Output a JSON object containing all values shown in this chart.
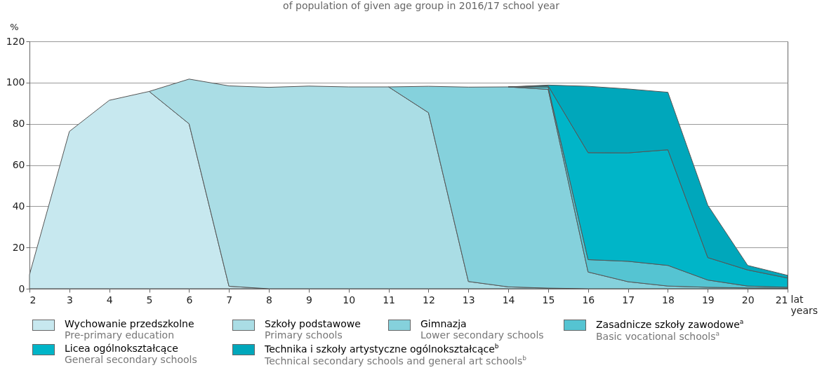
{
  "chart_data": {
    "type": "area",
    "stacked": true,
    "title": "of population of given age group in 2016/17 school year",
    "ylabel": "%",
    "xlabel": "lat\nyears",
    "x": [
      2,
      3,
      4,
      5,
      6,
      7,
      8,
      9,
      10,
      11,
      12,
      13,
      14,
      15,
      16,
      17,
      18,
      19,
      20,
      21
    ],
    "xlim": [
      2,
      21
    ],
    "xticks": [
      2,
      3,
      4,
      5,
      6,
      7,
      8,
      9,
      10,
      11,
      12,
      13,
      14,
      15,
      16,
      17,
      18,
      19,
      20,
      21
    ],
    "ylim": [
      0,
      120
    ],
    "yticks": [
      0,
      20,
      40,
      60,
      80,
      100,
      120
    ],
    "grid": "y",
    "legend": "bottom",
    "series": [
      {
        "name": "Wychowanie przedszkolne\nPre-primary education",
        "color": "#c7e8ef",
        "values": [
          6.8,
          76.3,
          91.4,
          95.7,
          80.0,
          1.2,
          0,
          null,
          null,
          null,
          null,
          null,
          null,
          null,
          null,
          null,
          null,
          null,
          null,
          null
        ]
      },
      {
        "name": "Szkoły podstawowe\nPrimary schools",
        "color": "#aadde5",
        "values": [
          null,
          null,
          null,
          0,
          21.7,
          97.2,
          97.7,
          98.3,
          97.9,
          97.9,
          85.4,
          3.5,
          0.9,
          0.3,
          0,
          null,
          null,
          null,
          null,
          null
        ]
      },
      {
        "name": "Gimnazja\nLower secondary schools",
        "color": "#85d1dc",
        "values": [
          null,
          null,
          null,
          null,
          null,
          null,
          null,
          null,
          null,
          0,
          12.8,
          94.3,
          97.0,
          96.4,
          8.1,
          3.4,
          1.3,
          0.7,
          0.4,
          0.3
        ]
      },
      {
        "name": "Zasadnicze szkoły zawodowe$^{a}$\nBasic vocational schools$^{a}$",
        "color": "#55c4d2",
        "values": [
          null,
          null,
          null,
          null,
          null,
          null,
          null,
          null,
          null,
          null,
          null,
          null,
          0,
          1.2,
          6.0,
          9.9,
          10.0,
          3.5,
          0.9,
          0.4
        ]
      },
      {
        "name": "Licea ogólnokształcące\nGeneral secondary schools",
        "color": "#00b5c8",
        "values": [
          null,
          null,
          null,
          null,
          null,
          null,
          null,
          null,
          null,
          null,
          null,
          null,
          0,
          0.5,
          51.9,
          52.6,
          56.1,
          10.9,
          7.8,
          4.5
        ]
      },
      {
        "name": "Technika i szkoły artystyczne ogólnokształcące$^{b}$\nTechnical secondary schools and general art schools$^{b}$",
        "color": "#00a7bb",
        "values": [
          null,
          null,
          null,
          null,
          null,
          null,
          null,
          null,
          null,
          null,
          null,
          null,
          0,
          0.4,
          32.2,
          31.0,
          27.9,
          25.4,
          2.2,
          1.3
        ]
      }
    ]
  }
}
